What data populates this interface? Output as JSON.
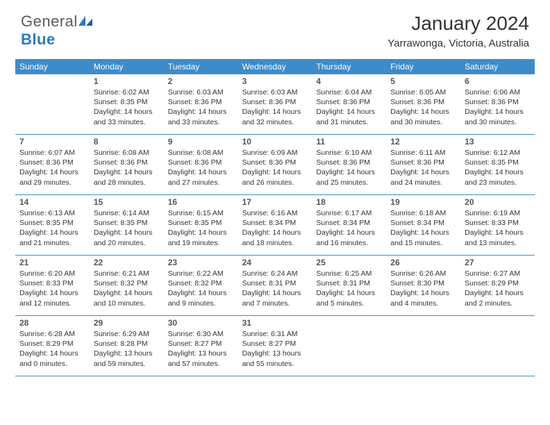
{
  "logo": {
    "text_a": "General",
    "text_b": "Blue"
  },
  "header": {
    "title": "January 2024",
    "location": "Yarrawonga, Victoria, Australia"
  },
  "style": {
    "header_bg": "#3d8bc9",
    "header_text": "#ffffff",
    "border_color": "#3d8bc9",
    "daynum_color": "#555555",
    "body_text": "#333333",
    "logo_gray": "#5a5a5a",
    "logo_blue": "#2a7ac0",
    "title_fontsize": 28,
    "location_fontsize": 15,
    "dow_fontsize": 12,
    "cell_fontsize": 10.5
  },
  "days_of_week": [
    "Sunday",
    "Monday",
    "Tuesday",
    "Wednesday",
    "Thursday",
    "Friday",
    "Saturday"
  ],
  "weeks": [
    [
      null,
      {
        "n": "1",
        "sr": "Sunrise: 6:02 AM",
        "ss": "Sunset: 8:35 PM",
        "d1": "Daylight: 14 hours",
        "d2": "and 33 minutes."
      },
      {
        "n": "2",
        "sr": "Sunrise: 6:03 AM",
        "ss": "Sunset: 8:36 PM",
        "d1": "Daylight: 14 hours",
        "d2": "and 33 minutes."
      },
      {
        "n": "3",
        "sr": "Sunrise: 6:03 AM",
        "ss": "Sunset: 8:36 PM",
        "d1": "Daylight: 14 hours",
        "d2": "and 32 minutes."
      },
      {
        "n": "4",
        "sr": "Sunrise: 6:04 AM",
        "ss": "Sunset: 8:36 PM",
        "d1": "Daylight: 14 hours",
        "d2": "and 31 minutes."
      },
      {
        "n": "5",
        "sr": "Sunrise: 6:05 AM",
        "ss": "Sunset: 8:36 PM",
        "d1": "Daylight: 14 hours",
        "d2": "and 30 minutes."
      },
      {
        "n": "6",
        "sr": "Sunrise: 6:06 AM",
        "ss": "Sunset: 8:36 PM",
        "d1": "Daylight: 14 hours",
        "d2": "and 30 minutes."
      }
    ],
    [
      {
        "n": "7",
        "sr": "Sunrise: 6:07 AM",
        "ss": "Sunset: 8:36 PM",
        "d1": "Daylight: 14 hours",
        "d2": "and 29 minutes."
      },
      {
        "n": "8",
        "sr": "Sunrise: 6:08 AM",
        "ss": "Sunset: 8:36 PM",
        "d1": "Daylight: 14 hours",
        "d2": "and 28 minutes."
      },
      {
        "n": "9",
        "sr": "Sunrise: 6:08 AM",
        "ss": "Sunset: 8:36 PM",
        "d1": "Daylight: 14 hours",
        "d2": "and 27 minutes."
      },
      {
        "n": "10",
        "sr": "Sunrise: 6:09 AM",
        "ss": "Sunset: 8:36 PM",
        "d1": "Daylight: 14 hours",
        "d2": "and 26 minutes."
      },
      {
        "n": "11",
        "sr": "Sunrise: 6:10 AM",
        "ss": "Sunset: 8:36 PM",
        "d1": "Daylight: 14 hours",
        "d2": "and 25 minutes."
      },
      {
        "n": "12",
        "sr": "Sunrise: 6:11 AM",
        "ss": "Sunset: 8:36 PM",
        "d1": "Daylight: 14 hours",
        "d2": "and 24 minutes."
      },
      {
        "n": "13",
        "sr": "Sunrise: 6:12 AM",
        "ss": "Sunset: 8:35 PM",
        "d1": "Daylight: 14 hours",
        "d2": "and 23 minutes."
      }
    ],
    [
      {
        "n": "14",
        "sr": "Sunrise: 6:13 AM",
        "ss": "Sunset: 8:35 PM",
        "d1": "Daylight: 14 hours",
        "d2": "and 21 minutes."
      },
      {
        "n": "15",
        "sr": "Sunrise: 6:14 AM",
        "ss": "Sunset: 8:35 PM",
        "d1": "Daylight: 14 hours",
        "d2": "and 20 minutes."
      },
      {
        "n": "16",
        "sr": "Sunrise: 6:15 AM",
        "ss": "Sunset: 8:35 PM",
        "d1": "Daylight: 14 hours",
        "d2": "and 19 minutes."
      },
      {
        "n": "17",
        "sr": "Sunrise: 6:16 AM",
        "ss": "Sunset: 8:34 PM",
        "d1": "Daylight: 14 hours",
        "d2": "and 18 minutes."
      },
      {
        "n": "18",
        "sr": "Sunrise: 6:17 AM",
        "ss": "Sunset: 8:34 PM",
        "d1": "Daylight: 14 hours",
        "d2": "and 16 minutes."
      },
      {
        "n": "19",
        "sr": "Sunrise: 6:18 AM",
        "ss": "Sunset: 8:34 PM",
        "d1": "Daylight: 14 hours",
        "d2": "and 15 minutes."
      },
      {
        "n": "20",
        "sr": "Sunrise: 6:19 AM",
        "ss": "Sunset: 8:33 PM",
        "d1": "Daylight: 14 hours",
        "d2": "and 13 minutes."
      }
    ],
    [
      {
        "n": "21",
        "sr": "Sunrise: 6:20 AM",
        "ss": "Sunset: 8:33 PM",
        "d1": "Daylight: 14 hours",
        "d2": "and 12 minutes."
      },
      {
        "n": "22",
        "sr": "Sunrise: 6:21 AM",
        "ss": "Sunset: 8:32 PM",
        "d1": "Daylight: 14 hours",
        "d2": "and 10 minutes."
      },
      {
        "n": "23",
        "sr": "Sunrise: 6:22 AM",
        "ss": "Sunset: 8:32 PM",
        "d1": "Daylight: 14 hours",
        "d2": "and 9 minutes."
      },
      {
        "n": "24",
        "sr": "Sunrise: 6:24 AM",
        "ss": "Sunset: 8:31 PM",
        "d1": "Daylight: 14 hours",
        "d2": "and 7 minutes."
      },
      {
        "n": "25",
        "sr": "Sunrise: 6:25 AM",
        "ss": "Sunset: 8:31 PM",
        "d1": "Daylight: 14 hours",
        "d2": "and 5 minutes."
      },
      {
        "n": "26",
        "sr": "Sunrise: 6:26 AM",
        "ss": "Sunset: 8:30 PM",
        "d1": "Daylight: 14 hours",
        "d2": "and 4 minutes."
      },
      {
        "n": "27",
        "sr": "Sunrise: 6:27 AM",
        "ss": "Sunset: 8:29 PM",
        "d1": "Daylight: 14 hours",
        "d2": "and 2 minutes."
      }
    ],
    [
      {
        "n": "28",
        "sr": "Sunrise: 6:28 AM",
        "ss": "Sunset: 8:29 PM",
        "d1": "Daylight: 14 hours",
        "d2": "and 0 minutes."
      },
      {
        "n": "29",
        "sr": "Sunrise: 6:29 AM",
        "ss": "Sunset: 8:28 PM",
        "d1": "Daylight: 13 hours",
        "d2": "and 59 minutes."
      },
      {
        "n": "30",
        "sr": "Sunrise: 6:30 AM",
        "ss": "Sunset: 8:27 PM",
        "d1": "Daylight: 13 hours",
        "d2": "and 57 minutes."
      },
      {
        "n": "31",
        "sr": "Sunrise: 6:31 AM",
        "ss": "Sunset: 8:27 PM",
        "d1": "Daylight: 13 hours",
        "d2": "and 55 minutes."
      },
      null,
      null,
      null
    ]
  ]
}
